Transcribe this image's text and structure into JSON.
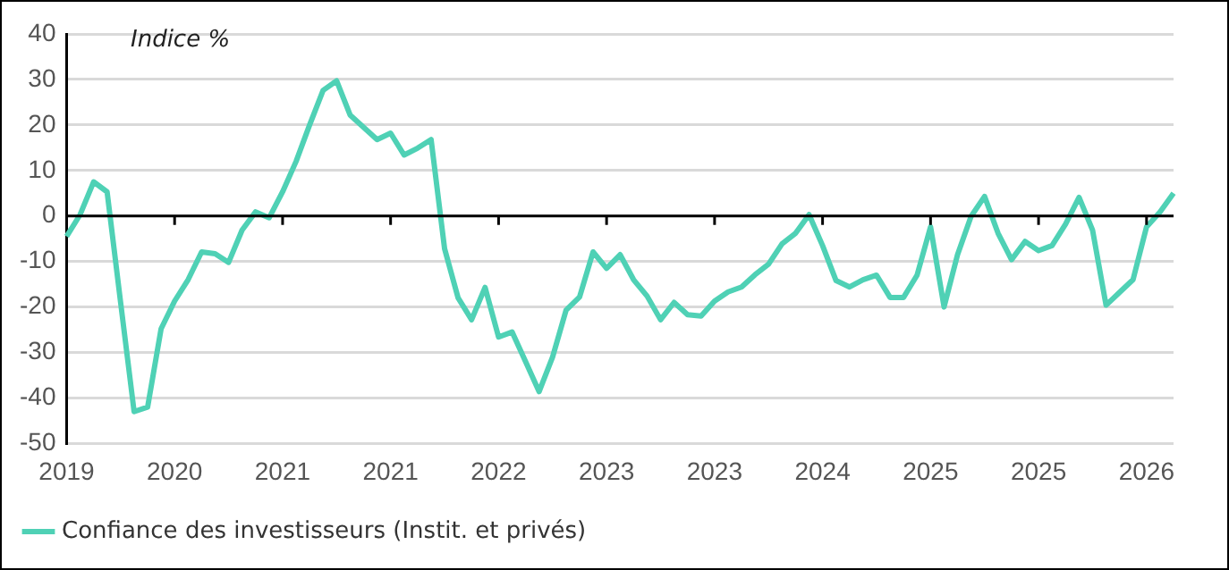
{
  "chart_data": {
    "type": "line",
    "subtitle": "Indice %",
    "categories": [
      "2019",
      null,
      null,
      null,
      null,
      null,
      null,
      null,
      "2020",
      null,
      null,
      null,
      null,
      null,
      null,
      null,
      "2021",
      null,
      null,
      null,
      null,
      null,
      null,
      null,
      "2021",
      null,
      null,
      null,
      null,
      null,
      null,
      null,
      "2022",
      null,
      null,
      null,
      null,
      null,
      null,
      null,
      "2023",
      null,
      null,
      null,
      null,
      null,
      null,
      null,
      "2023",
      null,
      null,
      null,
      null,
      null,
      null,
      null,
      "2024",
      null,
      null,
      null,
      null,
      null,
      null,
      null,
      "2025",
      null,
      null,
      null,
      null,
      null,
      null,
      null,
      "2025",
      null,
      null,
      null,
      null,
      null,
      null,
      null,
      "2026",
      null,
      null
    ],
    "series": [
      {
        "name": "Confiance des investisseurs (Instit. et privés)",
        "color": "#4fd1b5",
        "values": [
          -4.5,
          0.3,
          7.5,
          5.3,
          -19,
          -43,
          -42,
          -24.8,
          -18.7,
          -14,
          -7.9,
          -8.3,
          -10.2,
          -3.1,
          0.9,
          -0.4,
          5.3,
          12,
          20,
          27.6,
          29.7,
          22.2,
          19.5,
          16.8,
          18.2,
          13.4,
          14.9,
          16.8,
          -7.2,
          -18,
          -22.8,
          -15.7,
          -26.6,
          -25.5,
          -32,
          -38.6,
          -31,
          -20.7,
          -17.8,
          -7.9,
          -11.5,
          -8.5,
          -14,
          -17.6,
          -22.8,
          -19,
          -21.7,
          -22,
          -18.7,
          -16.7,
          -15.6,
          -12.9,
          -10.6,
          -6.1,
          -3.8,
          0.3,
          -6.5,
          -14.2,
          -15.6,
          -14,
          -13,
          -17.9,
          -17.9,
          -13,
          -2.4,
          -20,
          -8.5,
          -0.1,
          4.3,
          -3.8,
          -9.6,
          -5.6,
          -7.6,
          -6.5,
          -1.8,
          4.1,
          -3.1,
          -19.6,
          -16.8,
          -14,
          -2.4,
          0.9,
          5
        ]
      }
    ],
    "ylim": [
      -50,
      40
    ],
    "yticks": [
      -50,
      -40,
      -30,
      -20,
      -10,
      0,
      10,
      20,
      30,
      40
    ],
    "grid": "y",
    "legend": "bottom left",
    "marker": "none",
    "line_style": "solid"
  }
}
